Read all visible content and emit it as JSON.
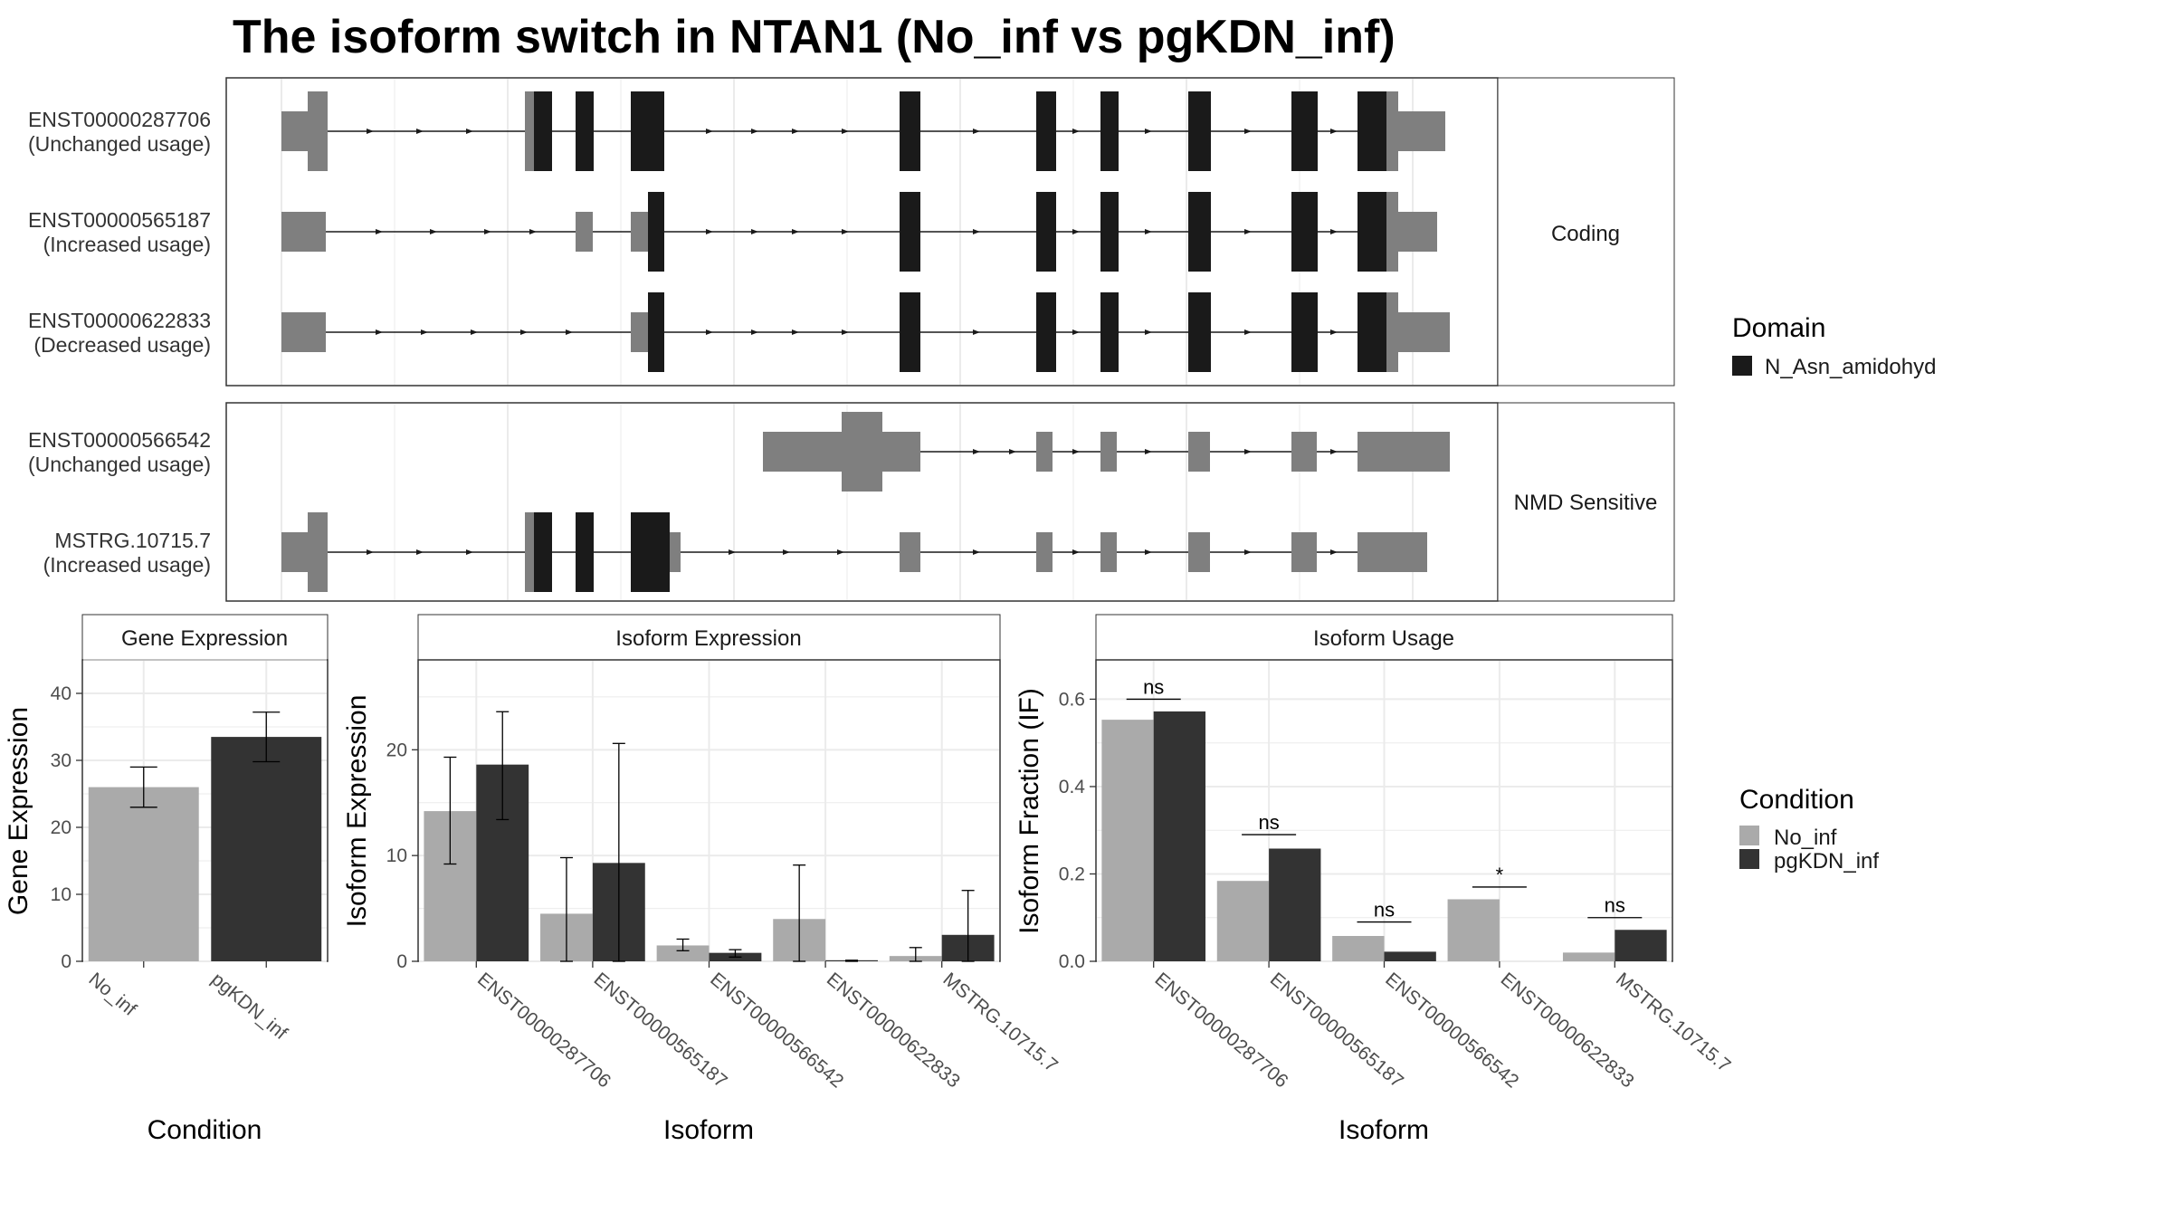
{
  "title": "The isoform switch in NTAN1 (No_inf vs pgKDN_inf)",
  "colors": {
    "exon_utr": "#7f7f7f",
    "domain": "#1a1a1a",
    "no_inf": "#aaaaaa",
    "pgkdn_inf": "#333333",
    "grid": "#ebebeb"
  },
  "structure": {
    "coding_label": "Coding",
    "nmd_label": "NMD Sensitive",
    "coding": [
      {
        "id": "ENST00000287706",
        "usage": "(Unchanged usage)"
      },
      {
        "id": "ENST00000565187",
        "usage": "(Increased usage)"
      },
      {
        "id": "ENST00000622833",
        "usage": "(Decreased usage)"
      }
    ],
    "nmd": [
      {
        "id": "ENST00000566542",
        "usage": "(Unchanged usage)"
      },
      {
        "id": "MSTRG.10715.7",
        "usage": "(Increased usage)"
      }
    ]
  },
  "legend_domain": {
    "title": "Domain",
    "items": [
      {
        "label": "N_Asn_amidohyd",
        "color": "#1a1a1a"
      }
    ]
  },
  "legend_condition": {
    "title": "Condition",
    "items": [
      {
        "label": "No_inf",
        "color": "#aaaaaa"
      },
      {
        "label": "pgKDN_inf",
        "color": "#333333"
      }
    ]
  },
  "chart_data": [
    {
      "type": "bar",
      "strip": "Gene Expression",
      "xlabel": "Condition",
      "ylabel": "Gene Expression",
      "ylim": [
        0,
        45
      ],
      "yticks": [
        "0",
        "10",
        "20",
        "30",
        "40"
      ],
      "categories": [
        "No_inf",
        "pgKDN_inf"
      ],
      "values": [
        26.0,
        33.5
      ],
      "error_low": [
        23.0,
        29.8
      ],
      "error_high": [
        29.0,
        37.2
      ],
      "colors": [
        "#aaaaaa",
        "#333333"
      ]
    },
    {
      "type": "bar",
      "strip": "Isoform Expression",
      "xlabel": "Isoform",
      "ylabel": "Isoform Expression",
      "ylim": [
        0,
        28.5
      ],
      "yticks": [
        "0",
        "10",
        "20"
      ],
      "categories": [
        "ENST00000287706",
        "ENST00000565187",
        "ENST00000566542",
        "ENST00000622833",
        "MSTRG.10715.7"
      ],
      "series": [
        {
          "name": "No_inf",
          "values": [
            14.2,
            4.5,
            1.5,
            4.0,
            0.5
          ],
          "error_low": [
            9.2,
            0,
            1.0,
            0,
            0
          ],
          "error_high": [
            19.3,
            9.8,
            2.1,
            9.1,
            1.3
          ]
        },
        {
          "name": "pgKDN_inf",
          "values": [
            18.6,
            9.3,
            0.8,
            0.1,
            2.5
          ],
          "error_low": [
            13.4,
            0,
            0.4,
            0,
            0
          ],
          "error_high": [
            23.6,
            20.6,
            1.1,
            0.1,
            6.7
          ]
        }
      ]
    },
    {
      "type": "bar",
      "strip": "Isoform Usage",
      "xlabel": "Isoform",
      "ylabel": "Isoform Fraction (IF)",
      "ylim": [
        0,
        0.69
      ],
      "yticks": [
        "0.0",
        "0.2",
        "0.4",
        "0.6"
      ],
      "categories": [
        "ENST00000287706",
        "ENST00000565187",
        "ENST00000566542",
        "ENST00000622833",
        "MSTRG.10715.7"
      ],
      "series": [
        {
          "name": "No_inf",
          "values": [
            0.553,
            0.184,
            0.058,
            0.142,
            0.02
          ]
        },
        {
          "name": "pgKDN_inf",
          "values": [
            0.572,
            0.258,
            0.022,
            0.0,
            0.072
          ]
        }
      ],
      "significance": [
        "ns",
        "ns",
        "ns",
        "*",
        "ns"
      ],
      "significance_y": [
        0.6,
        0.29,
        0.09,
        0.17,
        0.1
      ]
    }
  ]
}
